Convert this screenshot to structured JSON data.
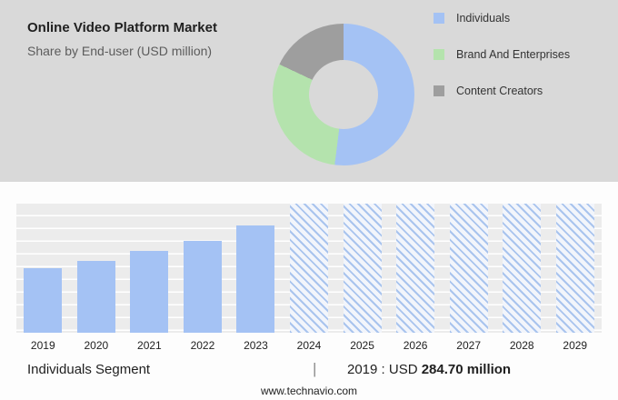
{
  "header": {
    "title": "Online Video Platform Market",
    "subtitle": "Share by End-user (USD million)"
  },
  "chart_data": [
    {
      "type": "pie",
      "subtype": "donut",
      "title": "Share by End-user (USD million)",
      "labels": [
        "Individuals",
        "Brand And Enterprises",
        "Content Creators"
      ],
      "values": [
        52,
        30,
        18
      ],
      "unit": "percent, estimated from arc angles",
      "colors": [
        "#a4c2f4",
        "#b4e3ad",
        "#9e9e9e"
      ],
      "legend_position": "right",
      "hole_color": "#d9d9d9"
    },
    {
      "type": "bar",
      "categories": [
        "2019",
        "2020",
        "2021",
        "2022",
        "2023",
        "2024",
        "2025",
        "2026",
        "2027",
        "2028",
        "2029"
      ],
      "series": [
        {
          "name": "Individuals segment market size (USD million)",
          "values": [
            284.7,
            317,
            362,
            407,
            472,
            null,
            null,
            null,
            null,
            null,
            null
          ]
        }
      ],
      "forecast_categories": [
        "2024",
        "2025",
        "2026",
        "2027",
        "2028",
        "2029"
      ],
      "note": "2019 value labeled 284.70; 2020-2023 estimated from bar heights; 2024-2029 shown as full-height hatched forecast columns",
      "bar_color": "#a4c2f4",
      "ylim": [
        0,
        570
      ],
      "xlabel": "Year",
      "ylabel": "",
      "grid": true
    }
  ],
  "footer": {
    "segment_label": "Individuals Segment",
    "separator": "|",
    "value_prefix": "2019 : USD ",
    "value_bold": "284.70 million"
  },
  "website": "www.technavio.com"
}
